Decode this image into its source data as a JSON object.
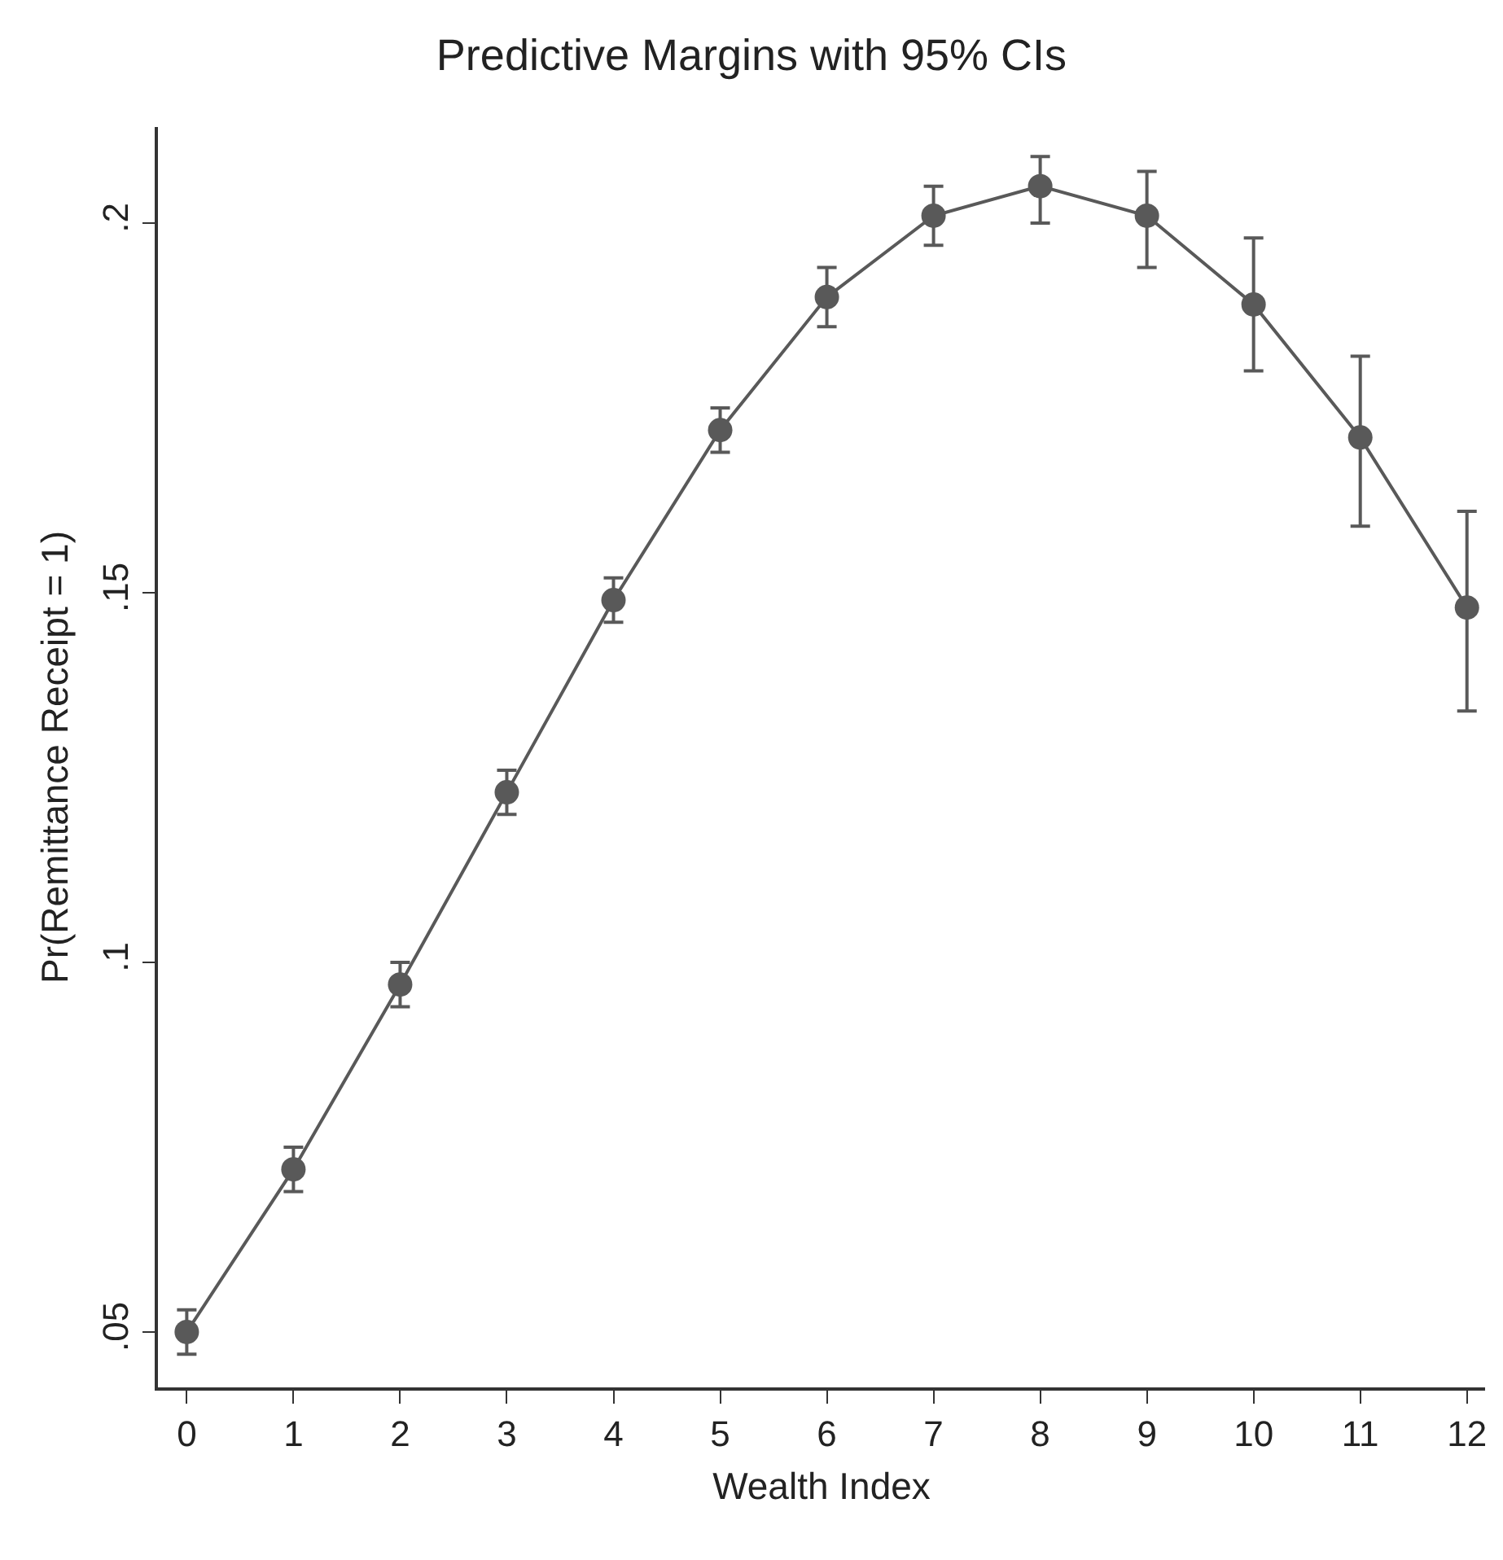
{
  "chart_data": {
    "type": "line",
    "title": "Predictive Margins with 95% CIs",
    "xlabel": "Wealth Index",
    "ylabel": "Pr(Remittance Receipt = 1)",
    "x": [
      0,
      1,
      2,
      3,
      4,
      5,
      6,
      7,
      8,
      9,
      10,
      11,
      12
    ],
    "series": [
      {
        "color": "#595959",
        "values": [
          0.05,
          0.072,
          0.097,
          0.123,
          0.149,
          0.172,
          0.19,
          0.201,
          0.205,
          0.201,
          0.189,
          0.171,
          0.148
        ],
        "errors": [
          [
            0.047,
            0.053
          ],
          [
            0.069,
            0.075
          ],
          [
            0.094,
            0.1
          ],
          [
            0.12,
            0.126
          ],
          [
            0.146,
            0.152
          ],
          [
            0.169,
            0.175
          ],
          [
            0.186,
            0.194
          ],
          [
            0.197,
            0.205
          ],
          [
            0.2,
            0.209
          ],
          [
            0.194,
            0.207
          ],
          [
            0.18,
            0.198
          ],
          [
            0.159,
            0.182
          ],
          [
            0.134,
            0.161
          ]
        ]
      }
    ],
    "xlim": [
      -0.27,
      12.17
    ],
    "xticks": [
      0,
      1,
      2,
      3,
      4,
      5,
      6,
      7,
      8,
      9,
      10,
      11,
      12
    ],
    "ylim": [
      0.0425,
      0.213
    ],
    "yticks": [
      {
        "value": 0.05,
        "label": ".05"
      },
      {
        "value": 0.1,
        "label": ".1"
      },
      {
        "value": 0.15,
        "label": ".15"
      },
      {
        "value": 0.2,
        "label": ".2"
      }
    ],
    "grid": false,
    "marker": "circle",
    "line_style": "solid"
  }
}
